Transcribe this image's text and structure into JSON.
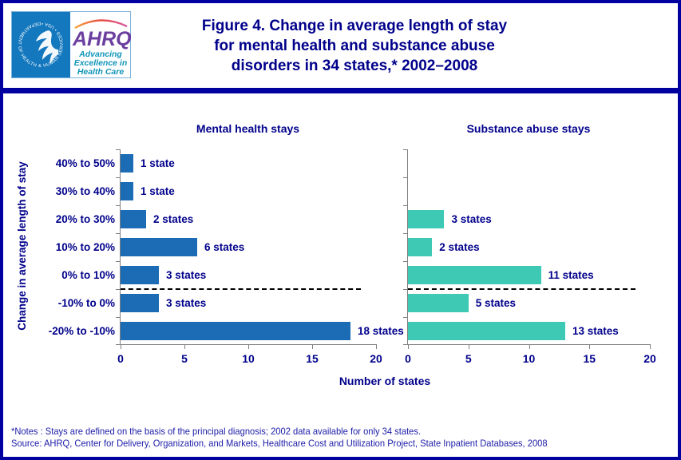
{
  "header": {
    "logo": {
      "seal_text": "DEPARTMENT OF HEALTH & HUMAN SERVICES • USA •",
      "ahrq": "AHRQ",
      "tagline": [
        "Advancing",
        "Excellence in",
        "Health Care"
      ]
    },
    "title_lines": [
      "Figure 4. Change in average length of stay",
      "for mental health and substance abuse",
      "disorders in 34 states,* 2002–2008"
    ]
  },
  "chart_data": {
    "type": "bar",
    "orientation": "horizontal",
    "title": "Figure 4. Change in average length of stay for mental health and substance abuse disorders in 34 states, 2002–2008",
    "categories": [
      "40% to 50%",
      "30% to 40%",
      "20% to 30%",
      "10% to 20%",
      "0% to 10%",
      "-10% to 0%",
      "-20% to -10%"
    ],
    "series": [
      {
        "name": "Mental health stays",
        "color": "#1B6CB4",
        "values": [
          1,
          1,
          2,
          6,
          3,
          3,
          18
        ],
        "labels": [
          "1 state",
          "1 state",
          "2 states",
          "6 states",
          "3 states",
          "3 states",
          "18 states"
        ]
      },
      {
        "name": "Substance abuse stays",
        "color": "#3EC9B4",
        "values": [
          null,
          null,
          3,
          2,
          11,
          5,
          13
        ],
        "labels": [
          null,
          null,
          "3 states",
          "2 states",
          "11 states",
          "5 states",
          "13 states"
        ]
      }
    ],
    "xlabel": "Number of states",
    "ylabel": "Change in average length of stay",
    "xlim": [
      0,
      20
    ],
    "xticks": [
      0,
      5,
      10,
      15,
      20
    ],
    "grid": false,
    "legend_position": "none",
    "dashed_reference_line_after_index": 4
  },
  "footer": {
    "notes": "*Notes :  Stays are defined on the basis of the principal diagnosis; 2002 data available for only 34 states.",
    "source": "Source:  AHRQ, Center for Delivery, Organization, and Markets, Healthcare Cost and Utilization Project, State Inpatient Databases, 2008"
  },
  "colors": {
    "navy_text": "#00008B",
    "border_navy": "#0000A0",
    "bar_blue": "#1B6CB4",
    "bar_teal": "#3EC9B4",
    "axis_gray": "#808080",
    "seal_blue": "#1478BE",
    "ahrq_purple": "#6B3FA0",
    "tagline_teal": "#1095B8"
  }
}
